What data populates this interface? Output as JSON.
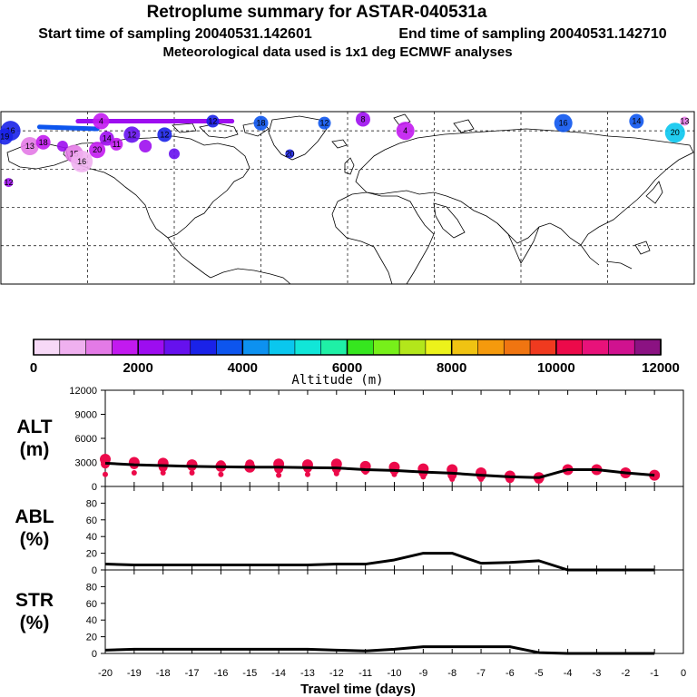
{
  "header": {
    "title": "Retroplume summary for ASTAR-040531a",
    "start_label": "Start time of sampling 20040531.142601",
    "end_label": "End time of sampling 20040531.142710",
    "met_label": "Meteorological data used is 1x1 deg ECMWF analyses"
  },
  "map": {
    "description_shown": false,
    "blobs": [
      {
        "lon": -175,
        "lat": 80,
        "alt": 3000,
        "r": 11,
        "label": "16"
      },
      {
        "lon": -178,
        "lat": 77,
        "alt": 3200,
        "r": 9,
        "label": "19"
      },
      {
        "lon": -165,
        "lat": 72,
        "alt": 1200,
        "r": 10,
        "label": "13"
      },
      {
        "lon": -158,
        "lat": 74,
        "alt": 1600,
        "r": 8,
        "label": "18"
      },
      {
        "lon": -148,
        "lat": 72,
        "alt": 2400,
        "r": 6,
        "label": ""
      },
      {
        "lon": -142,
        "lat": 68,
        "alt": 1100,
        "r": 10,
        "label": "15"
      },
      {
        "lon": -138,
        "lat": 64,
        "alt": 900,
        "r": 12,
        "label": "16"
      },
      {
        "lon": -130,
        "lat": 70,
        "alt": 1500,
        "r": 9,
        "label": "20"
      },
      {
        "lon": -125,
        "lat": 76,
        "alt": 2100,
        "r": 8,
        "label": "14"
      },
      {
        "lon": -120,
        "lat": 73,
        "alt": 1800,
        "r": 7,
        "label": "11"
      },
      {
        "lon": -112,
        "lat": 78,
        "alt": 2600,
        "r": 9,
        "label": "12"
      },
      {
        "lon": -105,
        "lat": 72,
        "alt": 2200,
        "r": 7,
        "label": ""
      },
      {
        "lon": -128,
        "lat": 85,
        "alt": 1900,
        "r": 9,
        "label": "4"
      },
      {
        "lon": -95,
        "lat": 78,
        "alt": 3300,
        "r": 8,
        "label": "12"
      },
      {
        "lon": -90,
        "lat": 68,
        "alt": 2700,
        "r": 6,
        "label": ""
      },
      {
        "lon": -70,
        "lat": 85,
        "alt": 3000,
        "r": 7,
        "label": "12"
      },
      {
        "lon": -45,
        "lat": 84,
        "alt": 3800,
        "r": 8,
        "label": "18"
      },
      {
        "lon": -12,
        "lat": 84,
        "alt": 3600,
        "r": 7,
        "label": "12"
      },
      {
        "lon": 8,
        "lat": 86,
        "alt": 2000,
        "r": 8,
        "label": "8"
      },
      {
        "lon": 30,
        "lat": 80,
        "alt": 1800,
        "r": 10,
        "label": "4"
      },
      {
        "lon": -30,
        "lat": 68,
        "alt": 3400,
        "r": 5,
        "label": "20"
      },
      {
        "lon": 112,
        "lat": 84,
        "alt": 3900,
        "r": 10,
        "label": "16"
      },
      {
        "lon": 150,
        "lat": 85,
        "alt": 3700,
        "r": 8,
        "label": "14"
      },
      {
        "lon": 170,
        "lat": 79,
        "alt": 4500,
        "r": 11,
        "label": "20"
      },
      {
        "lon": -176,
        "lat": 53,
        "alt": 2100,
        "r": 5,
        "label": "12"
      },
      {
        "lon": 175,
        "lat": 85,
        "alt": 1300,
        "r": 5,
        "label": "13"
      }
    ],
    "tracks": [
      {
        "lon1": -140,
        "lat1": 85,
        "lon2": -60,
        "lat2": 85,
        "alt": 2000
      },
      {
        "lon1": -160,
        "lat1": 82,
        "lon2": -130,
        "lat2": 81,
        "alt": 3900
      }
    ]
  },
  "colorbar": {
    "ticks": [
      "0",
      "2000",
      "4000",
      "6000",
      "8000",
      "10000",
      "12000"
    ],
    "label": "Altitude (m)",
    "colors": [
      "#f7d9f7",
      "#efb0ef",
      "#e37ae6",
      "#c21aef",
      "#9d0df0",
      "#6611ee",
      "#1a22e8",
      "#0d55ee",
      "#0d91f0",
      "#0ac7ee",
      "#11e6d8",
      "#1ff0a6",
      "#36e61f",
      "#77f01a",
      "#b3e61b",
      "#ecf21b",
      "#f0c312",
      "#f59a0d",
      "#f07511",
      "#f03a1f",
      "#ec0a4a",
      "#e8127a",
      "#d0128f",
      "#8b1282"
    ]
  },
  "chart_data": [
    {
      "type": "line",
      "id": "alt",
      "ylabel": "ALT",
      "yunit": "(m)",
      "ylim": [
        0,
        12000
      ],
      "yticks": [
        0,
        3000,
        6000,
        9000,
        12000
      ],
      "xlim": [
        -20,
        0
      ],
      "x": [
        -20,
        -19,
        -18,
        -17,
        -16,
        -15,
        -14,
        -13,
        -12,
        -11,
        -10,
        -9,
        -8,
        -7,
        -6,
        -5,
        -4,
        -3,
        -2,
        -1
      ],
      "values": [
        2900,
        2700,
        2600,
        2500,
        2450,
        2400,
        2400,
        2350,
        2300,
        2100,
        2000,
        1800,
        1650,
        1400,
        1200,
        1100,
        2100,
        2100,
        1700,
        1400
      ],
      "scatter": [
        {
          "x": -20,
          "ys": [
            3400,
            2800,
            1500
          ]
        },
        {
          "x": -19,
          "ys": [
            3000,
            2700,
            1700
          ]
        },
        {
          "x": -18,
          "ys": [
            2900,
            2400,
            1700
          ]
        },
        {
          "x": -17,
          "ys": [
            2700,
            2500,
            1700
          ]
        },
        {
          "x": -16,
          "ys": [
            2500,
            2700,
            1500
          ]
        },
        {
          "x": -15,
          "ys": [
            2400,
            2800,
            2600
          ]
        },
        {
          "x": -14,
          "ys": [
            2800,
            2200,
            1400
          ]
        },
        {
          "x": -13,
          "ys": [
            2700,
            2300,
            1500
          ]
        },
        {
          "x": -12,
          "ys": [
            2800,
            2200,
            1600
          ]
        },
        {
          "x": -11,
          "ys": [
            2500,
            2100,
            1800
          ]
        },
        {
          "x": -10,
          "ys": [
            2400,
            2000,
            1500
          ]
        },
        {
          "x": -9,
          "ys": [
            2200,
            1700,
            1200
          ]
        },
        {
          "x": -8,
          "ys": [
            2100,
            1400,
            900
          ]
        },
        {
          "x": -7,
          "ys": [
            1700,
            1300,
            900
          ]
        },
        {
          "x": -6,
          "ys": [
            1300,
            1000
          ]
        },
        {
          "x": -5,
          "ys": [
            1100,
            900
          ]
        },
        {
          "x": -4,
          "ys": [
            2100
          ]
        },
        {
          "x": -3,
          "ys": [
            2100
          ]
        },
        {
          "x": -2,
          "ys": [
            1700
          ]
        },
        {
          "x": -1,
          "ys": [
            1400
          ]
        }
      ]
    },
    {
      "type": "line",
      "id": "abl",
      "ylabel": "ABL",
      "yunit": "(%)",
      "ylim": [
        0,
        100
      ],
      "yticks": [
        0,
        20,
        40,
        60,
        80
      ],
      "xlim": [
        -20,
        0
      ],
      "x": [
        -20,
        -19,
        -18,
        -17,
        -16,
        -15,
        -14,
        -13,
        -12,
        -11,
        -10,
        -9,
        -8,
        -7,
        -6,
        -5,
        -4,
        -3,
        -2,
        -1
      ],
      "values": [
        7,
        6,
        6,
        6,
        6,
        6,
        6,
        6,
        7,
        7,
        12,
        20,
        20,
        8,
        9,
        11,
        0,
        0,
        0,
        0
      ]
    },
    {
      "type": "line",
      "id": "str",
      "ylabel": "STR",
      "yunit": "(%)",
      "ylim": [
        0,
        100
      ],
      "yticks": [
        0,
        20,
        40,
        60,
        80
      ],
      "xlim": [
        -20,
        0
      ],
      "x": [
        -20,
        -19,
        -18,
        -17,
        -16,
        -15,
        -14,
        -13,
        -12,
        -11,
        -10,
        -9,
        -8,
        -7,
        -6,
        -5,
        -4,
        -3,
        -2,
        -1
      ],
      "values": [
        4,
        5,
        5,
        5,
        5,
        5,
        5,
        5,
        4,
        3,
        5,
        8,
        8,
        8,
        8,
        1,
        0,
        0,
        0,
        0
      ],
      "xticks": [
        "-20",
        "-19",
        "-18",
        "-17",
        "-16",
        "-15",
        "-14",
        "-13",
        "-12",
        "-11",
        "-10",
        "-9",
        "-8",
        "-7",
        "-6",
        "-5",
        "-4",
        "-3",
        "-2",
        "-1",
        "0"
      ],
      "xlabel": "Travel time (days)"
    }
  ]
}
